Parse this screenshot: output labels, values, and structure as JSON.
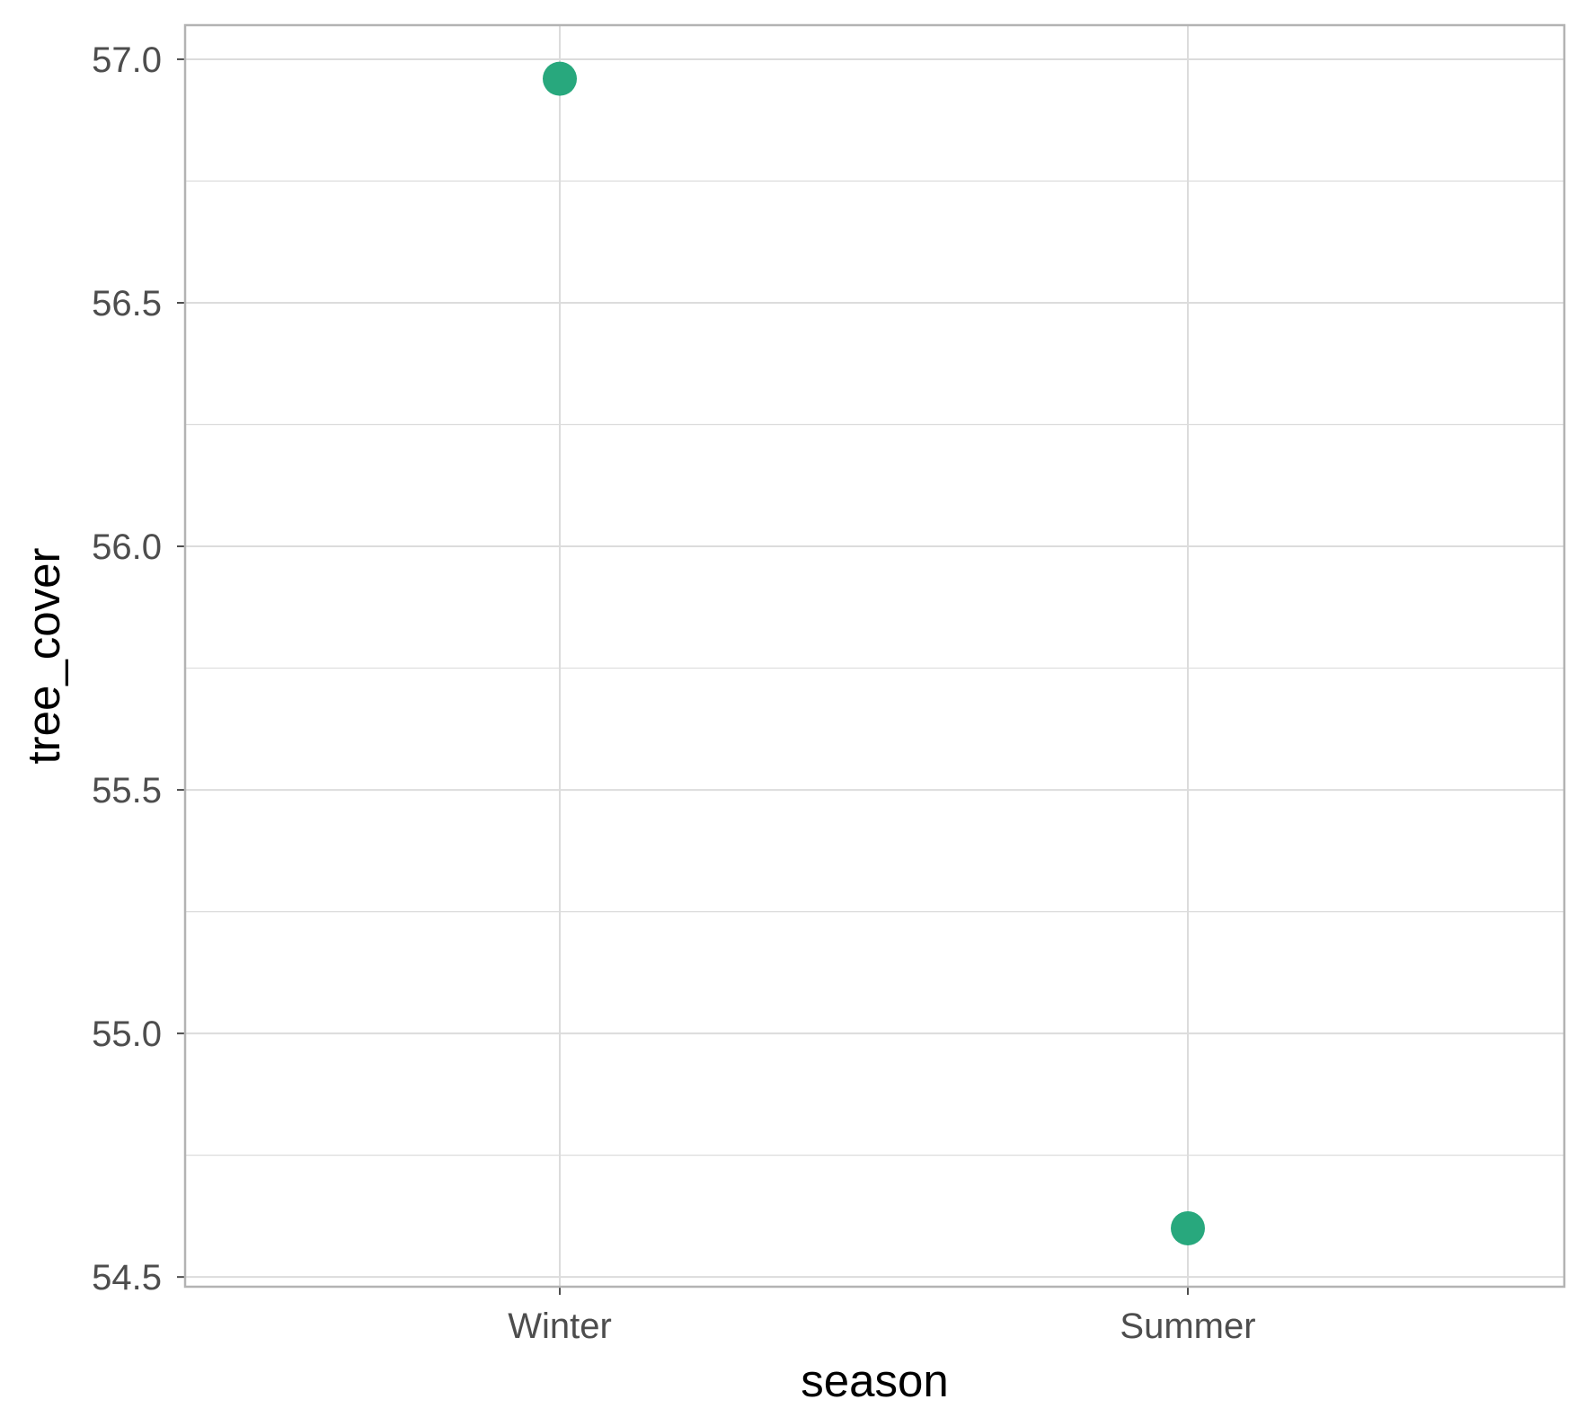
{
  "chart_data": {
    "type": "scatter",
    "categories": [
      "Winter",
      "Summer"
    ],
    "series": [
      {
        "values": [
          56.96,
          54.6
        ]
      }
    ],
    "xlabel": "season",
    "ylabel": "tree_cover",
    "ylim": [
      54.48,
      57.07
    ],
    "yticks": [
      "54.5",
      "55.0",
      "55.5",
      "56.0",
      "56.5",
      "57.0"
    ],
    "grid": true,
    "colors": {
      "point": "#28a87d",
      "grid": "#dcdcdc",
      "panel_border": "#b3b3b3"
    }
  }
}
